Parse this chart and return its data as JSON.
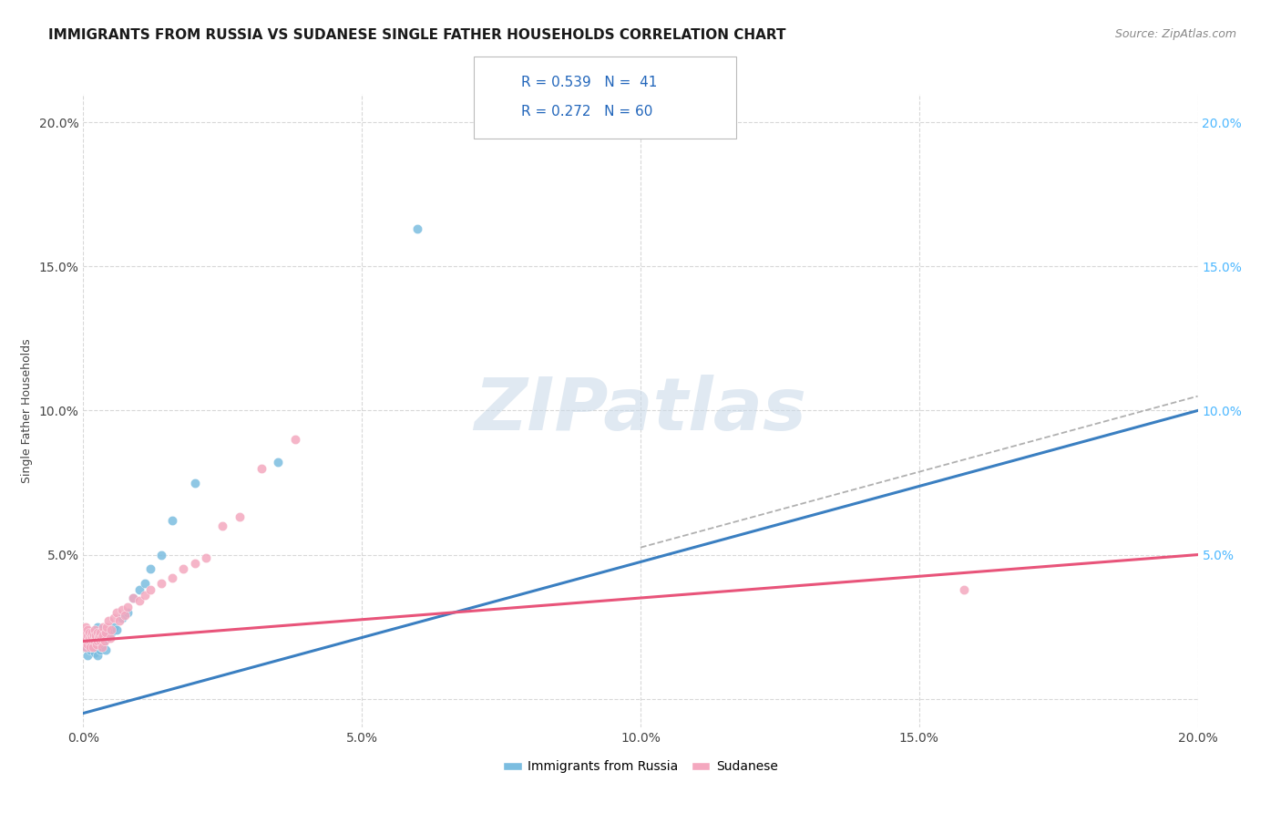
{
  "title": "IMMIGRANTS FROM RUSSIA VS SUDANESE SINGLE FATHER HOUSEHOLDS CORRELATION CHART",
  "source_text": "Source: ZipAtlas.com",
  "ylabel": "Single Father Households",
  "xlim": [
    0.0,
    0.2
  ],
  "ylim": [
    -0.01,
    0.21
  ],
  "xticks": [
    0.0,
    0.05,
    0.1,
    0.15,
    0.2
  ],
  "yticks": [
    0.0,
    0.05,
    0.1,
    0.15,
    0.2
  ],
  "xticklabels": [
    "0.0%",
    "5.0%",
    "10.0%",
    "15.0%",
    "20.0%"
  ],
  "yticklabels": [
    "",
    "5.0%",
    "10.0%",
    "15.0%",
    "20.0%"
  ],
  "blue_color": "#7bbde0",
  "pink_color": "#f4a8bf",
  "blue_line_color": "#3a7fc1",
  "pink_line_color": "#e8547a",
  "dashed_line_color": "#b0b0b0",
  "legend_label1": "Immigrants from Russia",
  "legend_label2": "Sudanese",
  "watermark": "ZIPatlas",
  "blue_scatter_x": [
    0.0003,
    0.0005,
    0.0007,
    0.0008,
    0.001,
    0.001,
    0.0012,
    0.0013,
    0.0015,
    0.0015,
    0.0018,
    0.002,
    0.002,
    0.0022,
    0.0023,
    0.0025,
    0.0025,
    0.0028,
    0.003,
    0.003,
    0.0032,
    0.0033,
    0.0035,
    0.0038,
    0.004,
    0.0042,
    0.0045,
    0.005,
    0.0055,
    0.006,
    0.007,
    0.008,
    0.009,
    0.01,
    0.011,
    0.012,
    0.014,
    0.016,
    0.02,
    0.035,
    0.06
  ],
  "blue_scatter_y": [
    0.02,
    0.018,
    0.021,
    0.015,
    0.018,
    0.022,
    0.02,
    0.017,
    0.018,
    0.023,
    0.021,
    0.016,
    0.022,
    0.018,
    0.02,
    0.015,
    0.025,
    0.02,
    0.017,
    0.022,
    0.018,
    0.02,
    0.019,
    0.022,
    0.017,
    0.021,
    0.023,
    0.023,
    0.025,
    0.024,
    0.028,
    0.03,
    0.035,
    0.038,
    0.04,
    0.045,
    0.05,
    0.062,
    0.075,
    0.082,
    0.163
  ],
  "pink_scatter_x": [
    0.0002,
    0.0003,
    0.0004,
    0.0005,
    0.0006,
    0.0007,
    0.0008,
    0.0008,
    0.0009,
    0.001,
    0.001,
    0.0012,
    0.0013,
    0.0014,
    0.0015,
    0.0016,
    0.0017,
    0.0018,
    0.0019,
    0.002,
    0.002,
    0.0022,
    0.0023,
    0.0024,
    0.0025,
    0.0026,
    0.0027,
    0.0028,
    0.003,
    0.003,
    0.0032,
    0.0033,
    0.0035,
    0.0036,
    0.0038,
    0.004,
    0.0042,
    0.0045,
    0.0048,
    0.005,
    0.0055,
    0.006,
    0.0065,
    0.007,
    0.0075,
    0.008,
    0.009,
    0.01,
    0.011,
    0.012,
    0.014,
    0.016,
    0.018,
    0.02,
    0.022,
    0.025,
    0.028,
    0.032,
    0.038,
    0.158
  ],
  "pink_scatter_y": [
    0.02,
    0.023,
    0.025,
    0.018,
    0.021,
    0.022,
    0.019,
    0.024,
    0.02,
    0.021,
    0.023,
    0.02,
    0.018,
    0.022,
    0.021,
    0.023,
    0.02,
    0.018,
    0.022,
    0.02,
    0.024,
    0.021,
    0.022,
    0.019,
    0.023,
    0.02,
    0.021,
    0.022,
    0.02,
    0.023,
    0.021,
    0.018,
    0.025,
    0.022,
    0.02,
    0.023,
    0.025,
    0.027,
    0.021,
    0.024,
    0.028,
    0.03,
    0.027,
    0.031,
    0.029,
    0.032,
    0.035,
    0.034,
    0.036,
    0.038,
    0.04,
    0.042,
    0.045,
    0.047,
    0.049,
    0.06,
    0.063,
    0.08,
    0.09,
    0.038
  ],
  "background_color": "#ffffff",
  "grid_color": "#d8d8d8",
  "title_fontsize": 11,
  "axis_label_fontsize": 9,
  "tick_fontsize": 10,
  "tick_color_right": "#4db8ff"
}
